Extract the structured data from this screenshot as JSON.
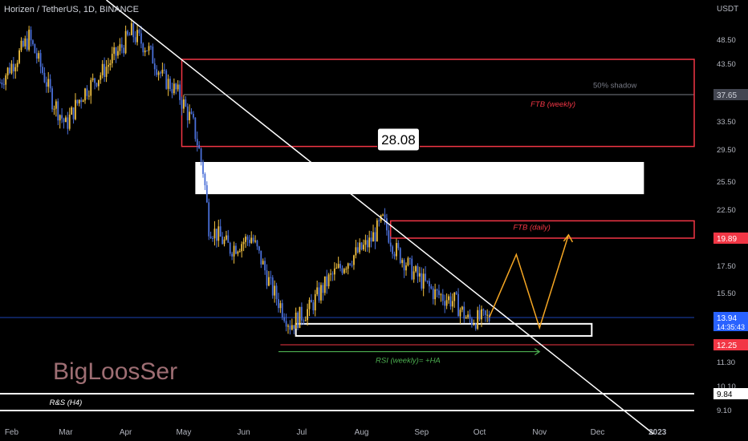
{
  "header": {
    "symbol_line": "Horizen / TetherUS, 1D, BINANCE"
  },
  "axis": {
    "unit": "USDT"
  },
  "watermark": "BigLoosSer",
  "chart_data": {
    "type": "candlestick",
    "ylim": [
      7.8,
      57
    ],
    "y_ticks": [
      48.5,
      43.5,
      33.5,
      29.5,
      25.5,
      22.5,
      17.5,
      15.5,
      11.3,
      10.1,
      9.1
    ],
    "y_tick_labels": [
      "48.50",
      "43.50",
      "33.50",
      "29.50",
      "25.50",
      "22.50",
      "17.50",
      "15.50",
      "11.30",
      "10.10",
      "9.10"
    ],
    "x_labels": [
      "Feb",
      "Mar",
      "Apr",
      "May",
      "Jun",
      "Jul",
      "Aug",
      "Sep",
      "Oct",
      "Nov",
      "Dec",
      "2023"
    ],
    "x_label_dates": [
      "2022-02-01",
      "2022-03-01",
      "2022-04-01",
      "2022-05-01",
      "2022-06-01",
      "2022-07-01",
      "2022-08-01",
      "2022-09-01",
      "2022-10-01",
      "2022-11-01",
      "2022-12-01",
      "2023-01-01"
    ],
    "price_path": [
      [
        "2022-01-26",
        40
      ],
      [
        "2022-02-04",
        45
      ],
      [
        "2022-02-10",
        49
      ],
      [
        "2022-02-22",
        37
      ],
      [
        "2022-03-01",
        33
      ],
      [
        "2022-03-10",
        38
      ],
      [
        "2022-03-20",
        42
      ],
      [
        "2022-03-28",
        46
      ],
      [
        "2022-04-04",
        50
      ],
      [
        "2022-04-12",
        47
      ],
      [
        "2022-04-20",
        41
      ],
      [
        "2022-04-28",
        38
      ],
      [
        "2022-05-06",
        33
      ],
      [
        "2022-05-11",
        27
      ],
      [
        "2022-05-14",
        21
      ],
      [
        "2022-05-25",
        19
      ],
      [
        "2022-06-05",
        20
      ],
      [
        "2022-06-15",
        16
      ],
      [
        "2022-06-25",
        13.5
      ],
      [
        "2022-07-05",
        14.5
      ],
      [
        "2022-07-15",
        16.5
      ],
      [
        "2022-07-25",
        18
      ],
      [
        "2022-08-05",
        19.5
      ],
      [
        "2022-08-12",
        21.5
      ],
      [
        "2022-08-18",
        19
      ],
      [
        "2022-08-28",
        17
      ],
      [
        "2022-09-08",
        15.5
      ],
      [
        "2022-09-18",
        15
      ],
      [
        "2022-09-25",
        13.8
      ],
      [
        "2022-10-06",
        13.9
      ]
    ],
    "price_labels": [
      {
        "label": "37.65",
        "value": 37.65,
        "style": "dark"
      },
      {
        "label": "19.89",
        "value": 19.89,
        "style": "red"
      },
      {
        "label": "13.94",
        "value": 13.94,
        "style": "blue",
        "sub": "14:35:43"
      },
      {
        "label": "12.25",
        "value": 12.25,
        "style": "red"
      },
      {
        "label": "9.84",
        "value": 9.84,
        "style": "white"
      }
    ],
    "zones": [
      {
        "name": "weekly-zone",
        "from_date": "2022-04-30",
        "to_date": "2023-01-20",
        "top": 44.5,
        "bottom": 30
      },
      {
        "name": "daily-zone",
        "from_date": "2022-08-16",
        "to_date": "2023-01-20",
        "top": 21.5,
        "bottom": 19.89
      },
      {
        "name": "white-box",
        "from_date": "2022-05-07",
        "to_date": "2022-12-25",
        "top": 28.08,
        "bottom": 24.2
      },
      {
        "name": "support-box",
        "from_date": "2022-06-28",
        "to_date": "2022-11-28",
        "top": 13.55,
        "bottom": 12.8
      }
    ],
    "levels": [
      {
        "name": "shadow-50",
        "value": 37.65,
        "from_date": "2022-05-01",
        "to_date": "2023-01-20",
        "color": "#787b86"
      },
      {
        "name": "level-12-25",
        "value": 12.25,
        "from_date": "2022-06-20",
        "to_date": "2023-01-20",
        "color": "#f23645"
      },
      {
        "name": "current-price",
        "value": 13.94,
        "from_date": "2022-01-26",
        "to_date": "2023-01-20",
        "color": "#2962ff"
      },
      {
        "name": "rs-line-upper",
        "value": 9.84,
        "from_date": "2022-01-26",
        "to_date": "2023-01-20",
        "color": "#ffffff"
      },
      {
        "name": "rs-line-lower",
        "value": 9.1,
        "from_date": "2022-01-26",
        "to_date": "2023-01-20",
        "color": "#ffffff"
      }
    ],
    "trendline": {
      "from": [
        "2022-03-22",
        57
      ],
      "to": [
        "2022-12-30",
        8.1
      ]
    },
    "projection_path": [
      [
        "2022-10-06",
        13.94
      ],
      [
        "2022-10-20",
        18.5
      ],
      [
        "2022-11-01",
        13.3
      ],
      [
        "2022-11-16",
        20.2
      ]
    ],
    "rsi_arrow": {
      "from": [
        "2022-06-19",
        11.88
      ],
      "to": [
        "2022-11-01",
        11.88
      ]
    },
    "callout": {
      "label": "28.08",
      "anchor": [
        "2022-08-08",
        28.08
      ]
    },
    "annotations": [
      {
        "text": "50% shadow",
        "date": "2022-12-10",
        "value": 39.4,
        "color": "#787b86"
      },
      {
        "text": "FTB (weekly)",
        "date": "2022-11-08",
        "value": 36.2,
        "color": "#f23645"
      },
      {
        "text": "FTB (daily)",
        "date": "2022-10-28",
        "value": 20.9,
        "color": "#f23645"
      },
      {
        "text": "RSI (weekly)= +HA",
        "date": "2022-08-25",
        "value": 11.4,
        "color": "#4caf50"
      },
      {
        "text": "R&S (H4)",
        "date": "2022-03-01",
        "value": 9.46,
        "color": "#ffffff"
      }
    ],
    "colors": {
      "up": "#f0c040",
      "down": "#4a6fd8",
      "zone": "#f23645",
      "projection": "#f5a623",
      "rsi": "#4caf50"
    }
  }
}
